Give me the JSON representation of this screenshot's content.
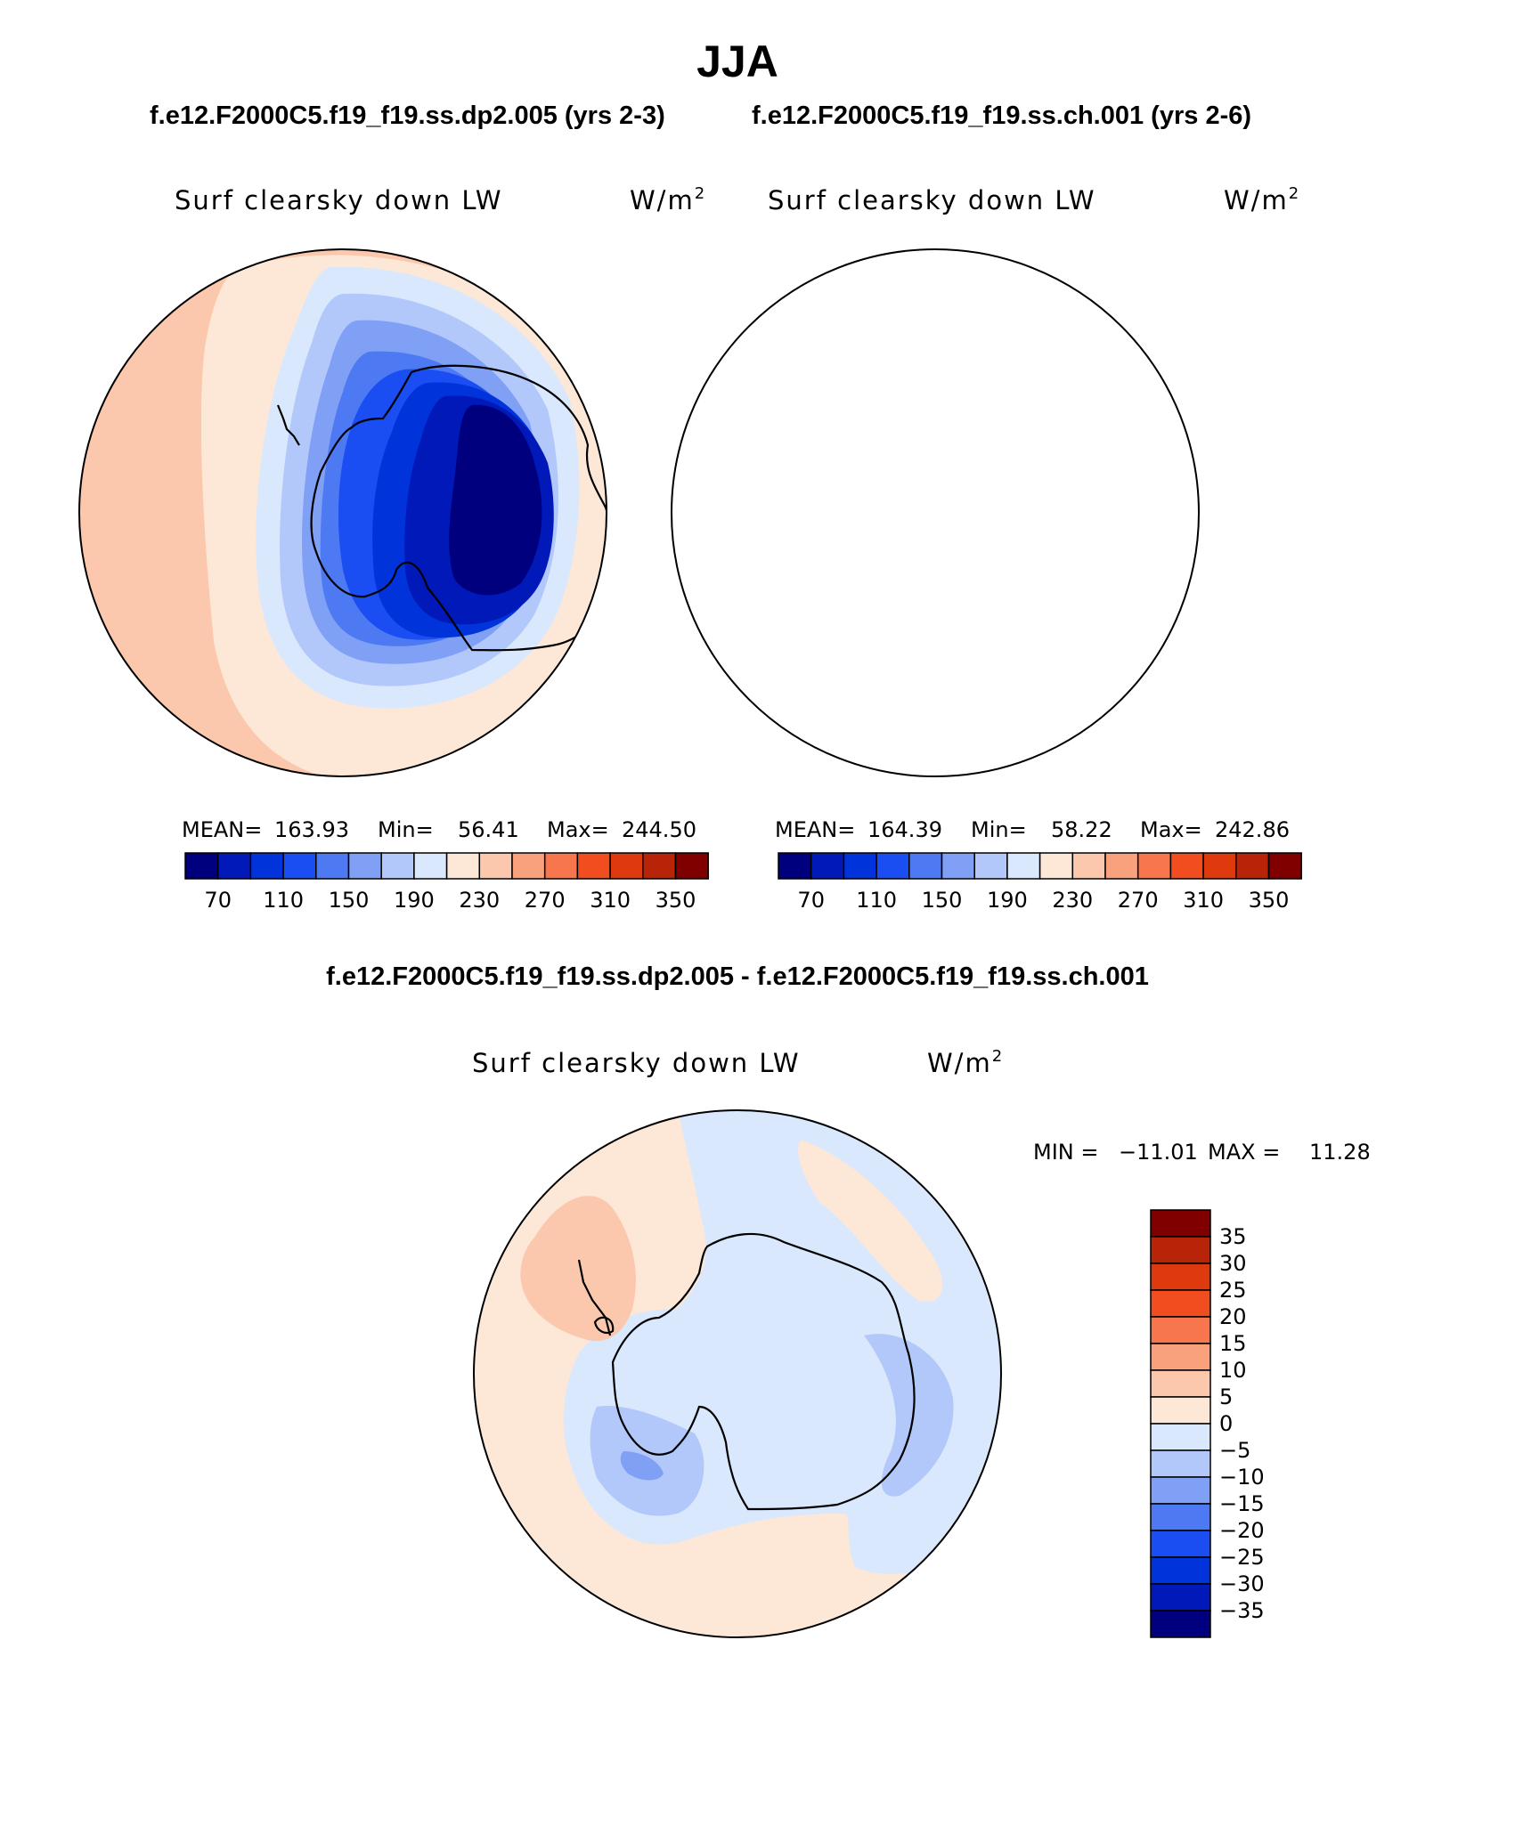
{
  "season_title": "JJA",
  "case_titles": {
    "left": "f.e12.F2000C5.f19_f19.ss.dp2.005 (yrs 2-3)",
    "right": "f.e12.F2000C5.f19_f19.ss.ch.001 (yrs 2-6)"
  },
  "diff_title": "f.e12.F2000C5.f19_f19.ss.dp2.005 - f.e12.F2000C5.f19_f19.ss.ch.001",
  "chart_data": [
    {
      "type": "heatmap",
      "projection": "south polar stereographic",
      "variable_label": "Surf clearsky down LW",
      "units_base": "W/m",
      "units_exp": "2",
      "stats": {
        "mean_label": "MEAN=",
        "mean": "163.93",
        "min_label": "Min=",
        "min": "56.41",
        "max_label": "Max=",
        "max": "244.50"
      },
      "colorbar": {
        "orientation": "horizontal",
        "levels": [
          70,
          90,
          110,
          130,
          150,
          170,
          190,
          210,
          230,
          250,
          270,
          290,
          310,
          330,
          350
        ],
        "tick_labels": [
          "70",
          "110",
          "150",
          "190",
          "230",
          "270",
          "310",
          "350"
        ]
      }
    },
    {
      "type": "heatmap",
      "projection": "south polar stereographic",
      "variable_label": "Surf clearsky down LW",
      "units_base": "W/m",
      "units_exp": "2",
      "stats": {
        "mean_label": "MEAN=",
        "mean": "164.39",
        "min_label": "Min=",
        "min": "58.22",
        "max_label": "Max=",
        "max": "242.86"
      },
      "colorbar": {
        "orientation": "horizontal",
        "levels": [
          70,
          90,
          110,
          130,
          150,
          170,
          190,
          210,
          230,
          250,
          270,
          290,
          310,
          330,
          350
        ],
        "tick_labels": [
          "70",
          "110",
          "150",
          "190",
          "230",
          "270",
          "310",
          "350"
        ]
      }
    },
    {
      "type": "heatmap",
      "projection": "south polar stereographic",
      "variable_label": "Surf clearsky down LW",
      "units_base": "W/m",
      "units_exp": "2",
      "stats": {
        "min_label": "MIN =",
        "min": "−11.01",
        "max_label": "MAX =",
        "max": "11.28"
      },
      "colorbar": {
        "orientation": "vertical",
        "levels": [
          35,
          30,
          25,
          20,
          15,
          10,
          5,
          0,
          -5,
          -10,
          -15,
          -20,
          -25,
          -30,
          -35
        ],
        "tick_labels": [
          "35",
          "30",
          "25",
          "20",
          "15",
          "10",
          "5",
          "0",
          "−5",
          "−10",
          "−15",
          "−20",
          "−25",
          "−30",
          "−35"
        ]
      }
    }
  ],
  "colors": {
    "palette": [
      "#00007f",
      "#0019b8",
      "#0033d9",
      "#1a4df2",
      "#4d79f2",
      "#80a0f5",
      "#b3c8fa",
      "#d9e8fc",
      "#fde8d8",
      "#fbc8ad",
      "#f9a07c",
      "#f7764d",
      "#f24d1f",
      "#de3a0e",
      "#b82408",
      "#800000"
    ],
    "coast": "#000000"
  }
}
